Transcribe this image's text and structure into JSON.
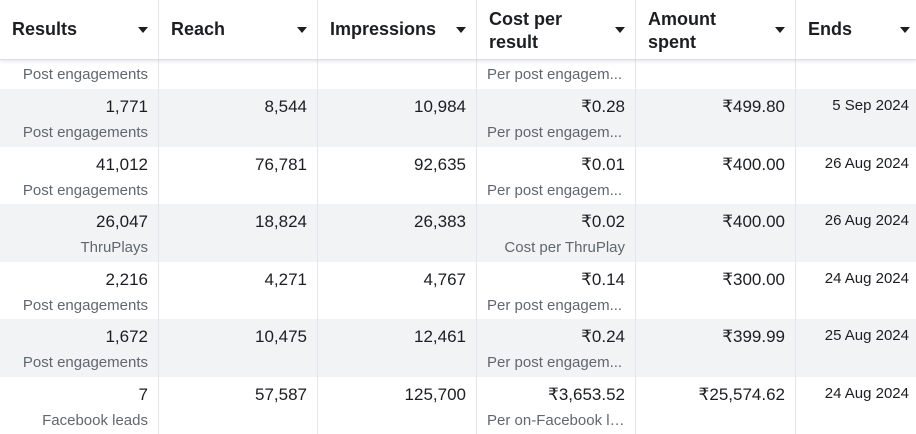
{
  "columns": {
    "results": "Results",
    "reach": "Reach",
    "impressions": "Impressions",
    "cost_line1": "Cost per",
    "cost_line2": "result",
    "amount_line1": "Amount",
    "amount_line2": "spent",
    "ends": "Ends"
  },
  "top_partial": {
    "results_sub": "Post engagements",
    "cost_sub": "Per post engagem..."
  },
  "rows": [
    {
      "results": "1,771",
      "results_sub": "Post engagements",
      "reach": "8,544",
      "impressions": "10,984",
      "cost": "₹0.28",
      "cost_sub": "Per post engagem...",
      "amount": "₹499.80",
      "ends": "5 Sep 2024"
    },
    {
      "results": "41,012",
      "results_sub": "Post engagements",
      "reach": "76,781",
      "impressions": "92,635",
      "cost": "₹0.01",
      "cost_sub": "Per post engagem...",
      "amount": "₹400.00",
      "ends": "26 Aug 2024"
    },
    {
      "results": "26,047",
      "results_sub": "ThruPlays",
      "reach": "18,824",
      "impressions": "26,383",
      "cost": "₹0.02",
      "cost_sub": "Cost per ThruPlay",
      "amount": "₹400.00",
      "ends": "26 Aug 2024"
    },
    {
      "results": "2,216",
      "results_sub": "Post engagements",
      "reach": "4,271",
      "impressions": "4,767",
      "cost": "₹0.14",
      "cost_sub": "Per post engagem...",
      "amount": "₹300.00",
      "ends": "24 Aug 2024"
    },
    {
      "results": "1,672",
      "results_sub": "Post engagements",
      "reach": "10,475",
      "impressions": "12,461",
      "cost": "₹0.24",
      "cost_sub": "Per post engagem...",
      "amount": "₹399.99",
      "ends": "25 Aug 2024"
    },
    {
      "results": "7",
      "results_sub": "Facebook leads",
      "reach": "57,587",
      "impressions": "125,700",
      "cost": "₹3,653.52",
      "cost_sub": "Per on-Facebook le...",
      "amount": "₹25,574.62",
      "ends": "24 Aug 2024"
    }
  ]
}
